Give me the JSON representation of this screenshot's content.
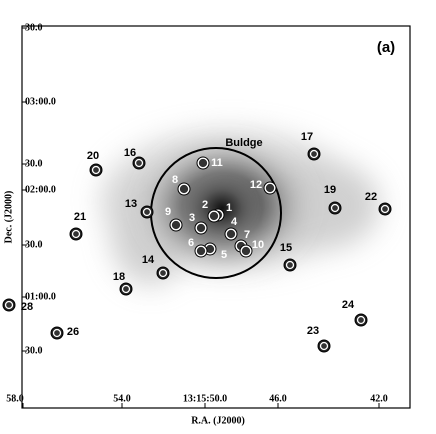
{
  "panel_label": "(a)",
  "bulge_label": "Buldge",
  "x_axis": {
    "title": "R.A. (J2000)",
    "ticks": [
      "58.0",
      "54.0",
      "13:15:50.0",
      "46.0",
      "42.0"
    ]
  },
  "y_axis": {
    "title": "Dec. (J2000)",
    "ticks": [
      "30.0",
      "03:00.0",
      "30.0",
      "02:00.0",
      "30.0",
      "01:00.0",
      "30.0"
    ]
  },
  "sources": [
    "1",
    "2",
    "3",
    "4",
    "5",
    "6",
    "7",
    "8",
    "9",
    "10",
    "11",
    "12",
    "13",
    "14",
    "15",
    "16",
    "17",
    "18",
    "19",
    "20",
    "21",
    "22",
    "23",
    "24",
    "26",
    "28"
  ]
}
